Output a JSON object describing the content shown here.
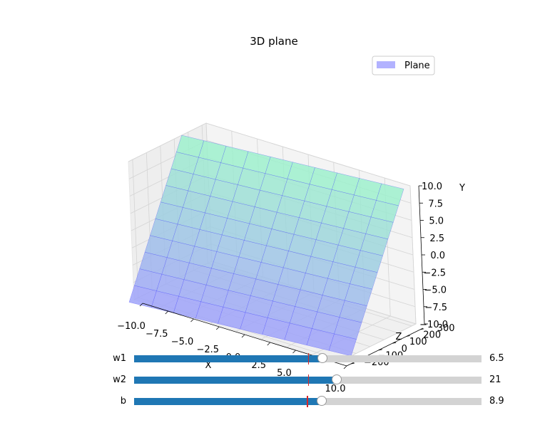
{
  "chart_data": {
    "type": "surface",
    "title": "3D plane",
    "xlabel": "X",
    "ylabel": "Y",
    "zlabel": "Z",
    "xlim": [
      -10,
      10
    ],
    "ylim": [
      -10,
      10
    ],
    "zlim": [
      -230,
      330
    ],
    "x_ticks": [
      "−10.0",
      "−7.5",
      "−5.0",
      "−2.5",
      "0.0",
      "2.5",
      "5.0",
      "7.5",
      "10.0"
    ],
    "y_ticks": [
      "−10.0",
      "−7.5",
      "−5.0",
      "−2.5",
      "0.0",
      "2.5",
      "5.0",
      "7.5",
      "10.0"
    ],
    "z_ticks": [
      "−200",
      "−100",
      "0",
      "100",
      "200",
      "300"
    ],
    "surface": {
      "equation": "z = w1*x + w2*y + b",
      "color_low": "#9f9ffb",
      "color_high": "#9ef4c9",
      "mesh_color": "#3a3aff"
    },
    "legend": {
      "position": "top-right",
      "label": "Plane",
      "color": "#b2b2ff"
    },
    "grid": true
  },
  "sliders": [
    {
      "label": "w1",
      "value": 6.5,
      "value_text": "6.5",
      "min": 0,
      "max": 12,
      "init": 6
    },
    {
      "label": "w2",
      "value": 21,
      "value_text": "21",
      "min": 0,
      "max": 36,
      "init": 18
    },
    {
      "label": "b",
      "value": 8.9,
      "value_text": "8.9",
      "min": 0,
      "max": 16.5,
      "init": 8.2
    }
  ]
}
